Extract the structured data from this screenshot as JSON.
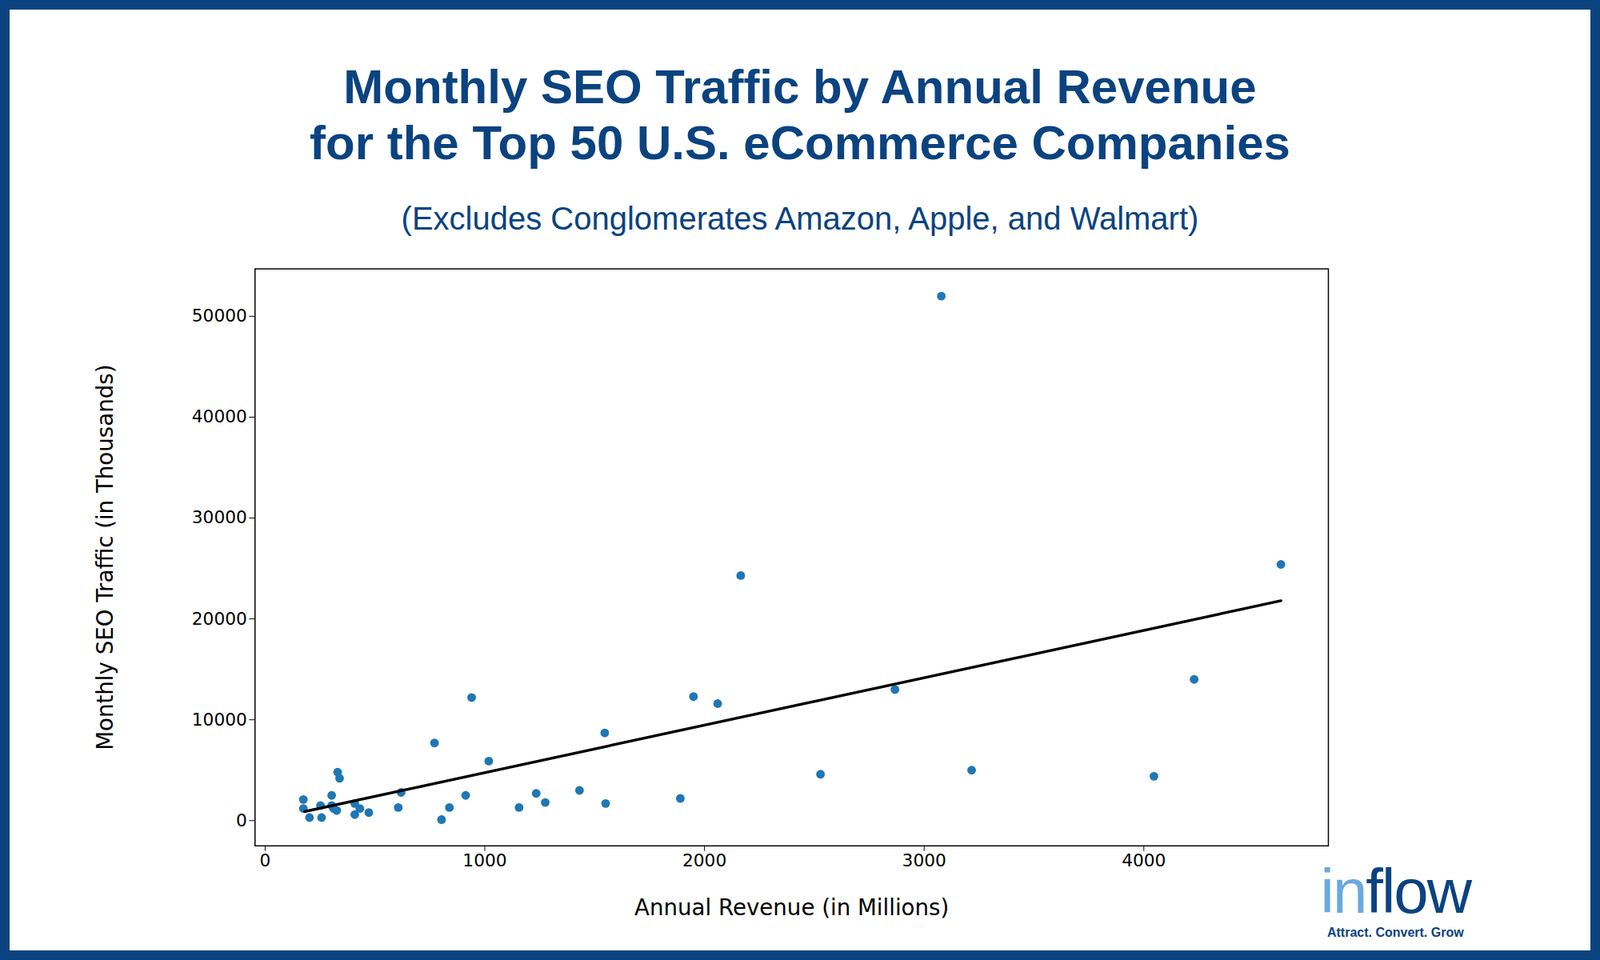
{
  "chart_data": {
    "type": "scatter",
    "title": "Monthly SEO Traffic by Annual Revenue\nfor the Top 50 U.S. eCommerce Companies",
    "subtitle": "(Excludes Conglomerates Amazon, Apple, and Walmart)",
    "x_label": "Annual Revenue (in Millions)",
    "y_label": "Monthly SEO Traffic (in Thousands)",
    "annotations": [
      "inflow",
      "Attract. Convert. Grow"
    ],
    "series": [
      {
        "type": "scatter",
        "color": "#1f77b4",
        "marker": "circle",
        "x": [
          174,
          174,
          202,
          252,
          257,
          303,
          303,
          312,
          326,
          330,
          339,
          408,
          408,
          431,
          472,
          606,
          619,
          771,
          803,
          839,
          913,
          940,
          1018,
          1156,
          1234,
          1275,
          1431,
          1546,
          1550,
          1890,
          1950,
          2060,
          2165,
          2528,
          2867,
          3078,
          3216,
          4046,
          4229,
          4624
        ],
        "values": [
          2100,
          1200,
          300,
          1500,
          300,
          2500,
          1500,
          1200,
          1000,
          4800,
          4200,
          1700,
          600,
          1200,
          800,
          1300,
          2800,
          7700,
          100,
          1300,
          2500,
          12200,
          5900,
          1300,
          2700,
          1800,
          3000,
          8700,
          1700,
          2200,
          12300,
          11600,
          24300,
          4600,
          13000,
          52000,
          5000,
          4400,
          14000,
          25400
        ]
      },
      {
        "type": "line",
        "color": "#000000",
        "line_style": "solid",
        "x": [
          179,
          4624
        ],
        "values": [
          900,
          21800
        ]
      }
    ],
    "xlim": [
      -46,
      4840
    ],
    "ylim": [
      -2500,
      54700
    ],
    "xticks": [
      0,
      1000,
      2000,
      3000,
      4000
    ],
    "yticks": [
      0,
      10000,
      20000,
      30000,
      40000,
      50000
    ],
    "grid": false
  }
}
